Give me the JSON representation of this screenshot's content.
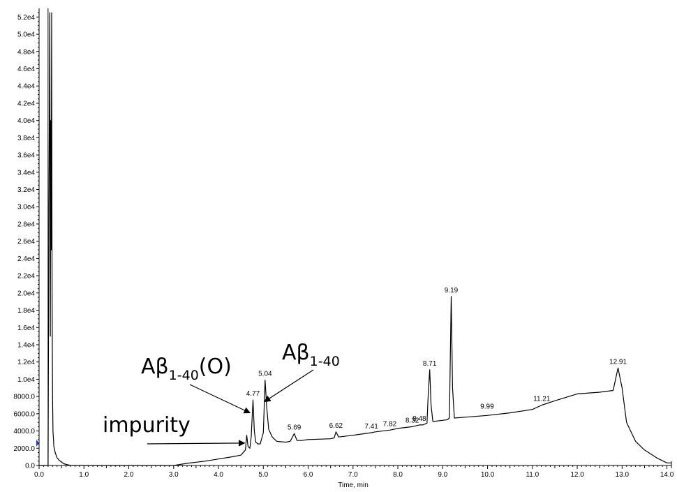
{
  "chart_data": {
    "type": "line",
    "title": "",
    "xlabel": "Time, min",
    "ylabel": "",
    "xlim": [
      0.0,
      14.1
    ],
    "ylim": [
      0,
      53000
    ],
    "x_ticks": [
      "0.0",
      "1.0",
      "2.0",
      "3.0",
      "4.0",
      "5.0",
      "6.0",
      "7.0",
      "8.0",
      "9.0",
      "10.0",
      "11.0",
      "12.0",
      "13.0",
      "14.0"
    ],
    "y_ticks": [
      "0.0",
      "2000.0",
      "4000.0",
      "6000.0",
      "8000.0",
      "1.0e4",
      "1.2e4",
      "1.4e4",
      "1.6e4",
      "1.8e4",
      "2.0e4",
      "2.2e4",
      "2.4e4",
      "2.6e4",
      "2.8e4",
      "3.0e4",
      "3.2e4",
      "3.4e4",
      "3.6e4",
      "3.8e4",
      "4.0e4",
      "4.2e4",
      "4.4e4",
      "4.6e4",
      "4.8e4",
      "5.0e4",
      "5.2e4"
    ],
    "series": [
      {
        "x": [
          0.0,
          0.2,
          0.22,
          0.24,
          0.25,
          0.26,
          0.27,
          0.28,
          0.29,
          0.3,
          0.31,
          0.33,
          0.36,
          0.4,
          0.45,
          0.55,
          0.7,
          0.9,
          1.2,
          2.0,
          3.0,
          3.3,
          3.7,
          4.0,
          4.3,
          4.5,
          4.6,
          4.63,
          4.66,
          4.7,
          4.73,
          4.77,
          4.8,
          4.83,
          4.88,
          4.93,
          5.0,
          5.04,
          5.08,
          5.12,
          5.2,
          5.3,
          5.5,
          5.6,
          5.69,
          5.75,
          5.85,
          6.0,
          6.5,
          6.58,
          6.62,
          6.68,
          7.0,
          7.41,
          7.5,
          7.82,
          8.0,
          8.32,
          8.4,
          8.48,
          8.55,
          8.65,
          8.68,
          8.71,
          8.74,
          8.78,
          9.1,
          9.15,
          9.19,
          9.22,
          9.26,
          9.5,
          9.99,
          10.5,
          11.0,
          11.21,
          11.5,
          12.0,
          12.5,
          12.8,
          12.91,
          13.0,
          13.1,
          13.3,
          13.5,
          13.8,
          14.0,
          14.1
        ],
        "y": [
          0,
          0,
          30000,
          52500,
          15000,
          40000,
          25000,
          52500,
          20000,
          8000,
          4000,
          2200,
          1500,
          900,
          600,
          200,
          0,
          0,
          0,
          0,
          0,
          250,
          500,
          750,
          1000,
          1200,
          1800,
          3500,
          2200,
          2000,
          3300,
          7600,
          4000,
          2700,
          2500,
          2500,
          3800,
          9900,
          6500,
          4200,
          3300,
          2800,
          2700,
          2800,
          3700,
          2900,
          2900,
          3000,
          3100,
          3200,
          3900,
          3300,
          3500,
          3800,
          3900,
          4100,
          4300,
          4500,
          4600,
          4700,
          4700,
          4900,
          8500,
          11100,
          7000,
          5100,
          5300,
          5500,
          19600,
          9000,
          5500,
          5600,
          5800,
          6100,
          6500,
          7000,
          7500,
          8300,
          8500,
          8700,
          11300,
          9000,
          5000,
          2800,
          1800,
          800,
          300,
          300
        ]
      }
    ],
    "peak_labels": [
      {
        "x": 4.77,
        "y": 7600,
        "text": "4.77"
      },
      {
        "x": 5.04,
        "y": 9900,
        "text": "5.04"
      },
      {
        "x": 5.69,
        "y": 3700,
        "text": "5.69"
      },
      {
        "x": 6.62,
        "y": 3900,
        "text": "6.62"
      },
      {
        "x": 7.41,
        "y": 3800,
        "text": "7.41"
      },
      {
        "x": 7.82,
        "y": 4100,
        "text": "7.82"
      },
      {
        "x": 8.32,
        "y": 4500,
        "text": "8.32"
      },
      {
        "x": 8.48,
        "y": 4700,
        "text": "8.48"
      },
      {
        "x": 8.71,
        "y": 11100,
        "text": "8.71"
      },
      {
        "x": 9.19,
        "y": 19600,
        "text": "9.19"
      },
      {
        "x": 9.99,
        "y": 6100,
        "text": "9.99"
      },
      {
        "x": 11.21,
        "y": 7000,
        "text": "11.21"
      },
      {
        "x": 12.91,
        "y": 11300,
        "text": "12.91"
      }
    ],
    "annotations": [
      {
        "text": "impurity",
        "main": "impurity",
        "sub": "",
        "suffix": "",
        "target_x": 4.63,
        "target_y": 2600
      },
      {
        "text": "Aβ1-40(O)",
        "main": "Aβ",
        "sub": "1-40",
        "suffix": "(O)",
        "target_x": 4.75,
        "target_y": 6100
      },
      {
        "text": "Aβ1-40",
        "main": "Aβ",
        "sub": "1-40",
        "suffix": "",
        "target_x": 5.07,
        "target_y": 7400
      }
    ],
    "grid": false,
    "line_color": "#000000",
    "marker_color": "#1f3fbf"
  }
}
